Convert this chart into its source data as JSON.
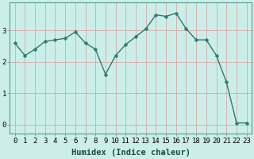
{
  "x": [
    0,
    1,
    2,
    3,
    4,
    5,
    6,
    7,
    8,
    9,
    10,
    11,
    12,
    13,
    14,
    15,
    16,
    17,
    18,
    19,
    20,
    21,
    22,
    23
  ],
  "y": [
    2.6,
    2.2,
    2.4,
    2.65,
    2.7,
    2.75,
    2.95,
    2.6,
    2.4,
    1.6,
    2.2,
    2.55,
    2.8,
    3.05,
    3.5,
    3.45,
    3.55,
    3.05,
    2.7,
    2.7,
    2.2,
    1.35,
    0.05,
    0.05
  ],
  "line_color": "#2d7b70",
  "marker": "D",
  "marker_size": 2.5,
  "bg_color": "#cceee8",
  "grid_color": "#d8a0a0",
  "xlabel": "Humidex (Indice chaleur)",
  "xlim": [
    -0.5,
    23.5
  ],
  "ylim": [
    -0.3,
    3.9
  ],
  "yticks": [
    0,
    1,
    2,
    3
  ],
  "xticks": [
    0,
    1,
    2,
    3,
    4,
    5,
    6,
    7,
    8,
    9,
    10,
    11,
    12,
    13,
    14,
    15,
    16,
    17,
    18,
    19,
    20,
    21,
    22,
    23
  ],
  "xlabel_fontsize": 7.5,
  "tick_fontsize": 6.5,
  "linewidth": 1.0
}
